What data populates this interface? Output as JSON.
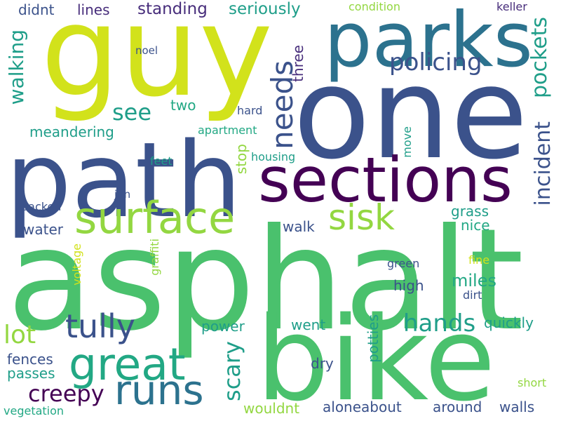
{
  "colors": {
    "background": "#ffffff",
    "yellow": "#d2e21b",
    "lime": "#93d741",
    "green": "#4ac16d",
    "teal": "#22a884",
    "cyan": "#1f9e89",
    "blue": "#2c728e",
    "navy": "#3b528b",
    "indigo": "#472d7b",
    "purple": "#440154"
  },
  "words": {
    "guy": "guy",
    "one": "one",
    "parks": "parks",
    "path": "path",
    "sections": "sections",
    "asphalt": "asphalt",
    "bike": "bike",
    "surface": "surface",
    "great": "great",
    "runs": "runs",
    "sisk": "sisk",
    "tully": "tully",
    "needs": "needs",
    "policing": "policing",
    "pockets": "pockets",
    "incident": "incident",
    "walking": "walking",
    "see": "see",
    "standing": "standing",
    "seriously": "seriously",
    "lines": "lines",
    "didnt": "didnt",
    "condition": "condition",
    "keller": "keller",
    "noel": "noel",
    "three": "three",
    "two": "two",
    "hard": "hard",
    "meandering": "meandering",
    "apartment": "apartment",
    "move": "move",
    "stop": "stop",
    "housing": "housing",
    "feet": "feet",
    "jun": "jun",
    "packed": "packed",
    "grass": "grass",
    "nice": "nice",
    "walk": "walk",
    "water": "water",
    "graffiti": "graffiti",
    "voltage": "voltage",
    "green": "green",
    "fine": "fine",
    "high": "high",
    "miles": "miles",
    "dirt": "dirt",
    "lot": "lot",
    "hands": "hands",
    "quickly": "quickly",
    "power": "power",
    "went": "went",
    "scary": "scary",
    "potties": "potties",
    "creepy": "creepy",
    "fences": "fences",
    "passes": "passes",
    "dry": "dry",
    "short": "short",
    "vegetation": "vegetation",
    "wouldnt": "wouldnt",
    "aloneabout": "aloneabout",
    "around": "around",
    "walls": "walls"
  }
}
